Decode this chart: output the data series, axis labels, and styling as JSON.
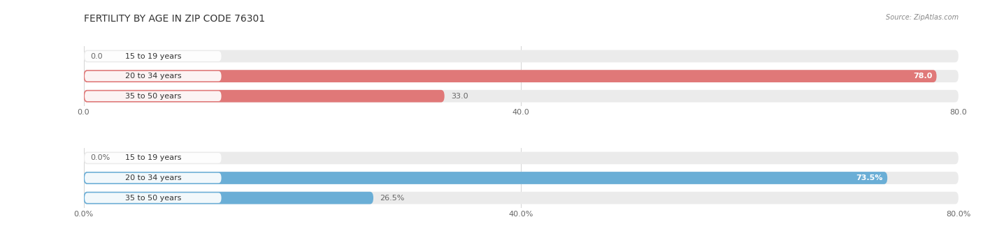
{
  "title": "FERTILITY BY AGE IN ZIP CODE 76301",
  "source": "Source: ZipAtlas.com",
  "top_chart": {
    "categories": [
      "15 to 19 years",
      "20 to 34 years",
      "35 to 50 years"
    ],
    "values": [
      0.0,
      78.0,
      33.0
    ],
    "xlim": [
      0,
      80.0
    ],
    "xticks": [
      0.0,
      40.0,
      80.0
    ],
    "xtick_labels": [
      "0.0",
      "40.0",
      "80.0"
    ],
    "bar_color": "#E07878",
    "bar_bg_color": "#EBEBEB",
    "label_inside_color": "#FFFFFF",
    "label_outside_color": "#666666"
  },
  "bottom_chart": {
    "categories": [
      "15 to 19 years",
      "20 to 34 years",
      "35 to 50 years"
    ],
    "values": [
      0.0,
      73.5,
      26.5
    ],
    "xlim": [
      0,
      80.0
    ],
    "xticks": [
      0.0,
      40.0,
      80.0
    ],
    "xtick_labels": [
      "0.0%",
      "40.0%",
      "80.0%"
    ],
    "bar_color": "#6AAED6",
    "bar_bg_color": "#EBEBEB",
    "label_inside_color": "#FFFFFF",
    "label_outside_color": "#666666"
  },
  "background_color": "#FFFFFF",
  "bar_height": 0.62,
  "title_fontsize": 10,
  "label_fontsize": 8,
  "tick_fontsize": 8,
  "category_fontsize": 8
}
